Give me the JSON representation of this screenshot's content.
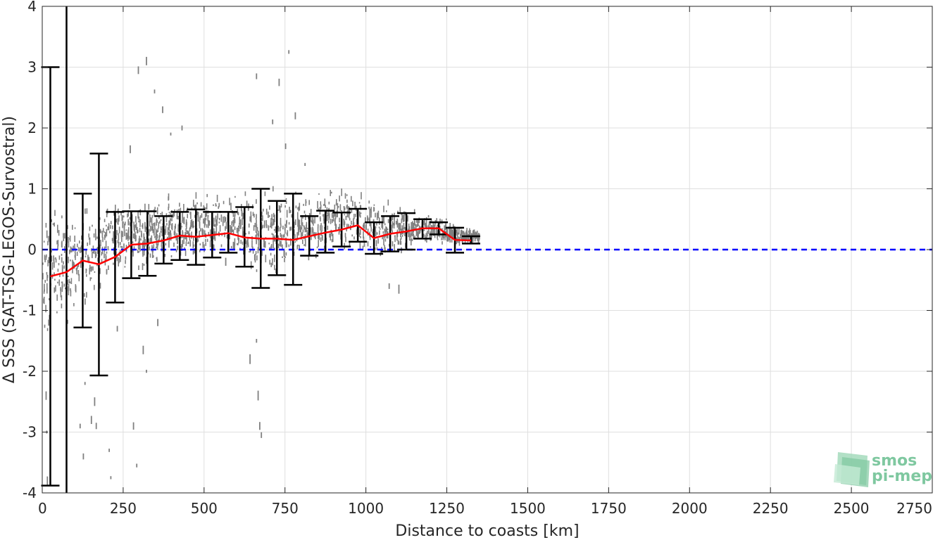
{
  "chart_data": {
    "type": "scatter",
    "xlabel": "Distance to coasts [km]",
    "ylabel": "Δ SSS (SAT-TSG-LEGOS-Survostral)",
    "xlim": [
      0,
      2750
    ],
    "ylim": [
      -4,
      4
    ],
    "x_ticks": [
      0,
      250,
      500,
      750,
      1000,
      1250,
      1500,
      1750,
      2000,
      2250,
      2500,
      2750
    ],
    "y_ticks": [
      -4,
      -3,
      -2,
      -1,
      0,
      1,
      2,
      3,
      4
    ],
    "grid": true,
    "zero_line": {
      "y": 0,
      "style": "dashed",
      "color": "#0000ff"
    },
    "colors": {
      "scatter": "#808080",
      "mean": "#ff0000",
      "errorbar": "#000000",
      "zero": "#0000ff"
    },
    "mean_curve": {
      "x": [
        25,
        75,
        125,
        175,
        225,
        275,
        325,
        375,
        425,
        475,
        525,
        575,
        625,
        675,
        725,
        775,
        825,
        875,
        925,
        975,
        1025,
        1075,
        1125,
        1175,
        1225,
        1275,
        1325
      ],
      "y": [
        -0.44,
        -0.37,
        -0.18,
        -0.24,
        -0.12,
        0.08,
        0.1,
        0.15,
        0.23,
        0.21,
        0.24,
        0.27,
        0.2,
        0.18,
        0.18,
        0.16,
        0.22,
        0.28,
        0.33,
        0.4,
        0.19,
        0.26,
        0.3,
        0.35,
        0.35,
        0.16,
        0.15
      ]
    },
    "error_bars": {
      "x": [
        25,
        75,
        125,
        175,
        225,
        275,
        325,
        375,
        425,
        475,
        525,
        575,
        625,
        675,
        725,
        775,
        825,
        875,
        925,
        975,
        1025,
        1075,
        1125,
        1175,
        1225,
        1275,
        1325
      ],
      "lower": [
        -3.88,
        -4.3,
        -1.28,
        -2.07,
        -0.87,
        -0.47,
        -0.43,
        -0.23,
        -0.17,
        -0.25,
        -0.13,
        -0.05,
        -0.28,
        -0.63,
        -0.42,
        -0.58,
        -0.1,
        -0.05,
        0.05,
        0.13,
        -0.07,
        -0.03,
        0.0,
        0.18,
        0.25,
        -0.05,
        0.1
      ],
      "upper": [
        3.0,
        4.3,
        0.92,
        1.58,
        0.62,
        0.63,
        0.63,
        0.55,
        0.62,
        0.66,
        0.62,
        0.62,
        0.7,
        1.0,
        0.8,
        0.92,
        0.55,
        0.64,
        0.61,
        0.67,
        0.45,
        0.55,
        0.6,
        0.5,
        0.45,
        0.36,
        0.22
      ]
    },
    "scatter_envelope": {
      "x": [
        0,
        50,
        100,
        150,
        200,
        250,
        300,
        350,
        400,
        450,
        500,
        550,
        600,
        650,
        700,
        750,
        800,
        850,
        900,
        950,
        1000,
        1050,
        1100,
        1150,
        1200,
        1250,
        1300,
        1350
      ],
      "lower": [
        -1.5,
        -1.4,
        -1.1,
        -0.9,
        -0.6,
        -0.4,
        -0.35,
        -0.25,
        -0.2,
        -0.2,
        -0.15,
        -0.1,
        -0.2,
        -0.5,
        -0.4,
        -0.45,
        -0.15,
        -0.15,
        -0.05,
        0.0,
        -0.05,
        -0.1,
        -0.05,
        0.1,
        0.15,
        0.05,
        0.08,
        0.1
      ],
      "upper": [
        0.6,
        0.7,
        0.75,
        0.8,
        0.75,
        0.8,
        0.8,
        0.8,
        0.85,
        0.9,
        0.95,
        0.95,
        0.9,
        0.95,
        1.0,
        1.0,
        0.95,
        1.0,
        1.0,
        1.0,
        0.9,
        0.85,
        0.8,
        0.6,
        0.55,
        0.5,
        0.35,
        0.3
      ]
    },
    "scatter_outliers": [
      [
        10,
        -2.4
      ],
      [
        12,
        -3.0
      ],
      [
        14,
        -3.8
      ],
      [
        18,
        -1.2
      ],
      [
        115,
        -2.9
      ],
      [
        125,
        -3.4
      ],
      [
        130,
        -2.2
      ],
      [
        150,
        -2.8
      ],
      [
        160,
        -2.5
      ],
      [
        165,
        -2.9
      ],
      [
        205,
        -3.3
      ],
      [
        210,
        -3.75
      ],
      [
        230,
        -1.3
      ],
      [
        280,
        -2.9
      ],
      [
        290,
        -3.55
      ],
      [
        310,
        -1.65
      ],
      [
        320,
        -2.0
      ],
      [
        355,
        -1.2
      ],
      [
        640,
        -1.8
      ],
      [
        660,
        -1.5
      ],
      [
        665,
        -2.4
      ],
      [
        670,
        -2.9
      ],
      [
        675,
        -3.05
      ],
      [
        565,
        -0.2
      ],
      [
        1070,
        -0.6
      ],
      [
        1100,
        -0.65
      ],
      [
        295,
        2.95
      ],
      [
        320,
        3.1
      ],
      [
        345,
        2.6
      ],
      [
        370,
        2.3
      ],
      [
        395,
        1.9
      ],
      [
        430,
        2.0
      ],
      [
        660,
        2.85
      ],
      [
        710,
        2.1
      ],
      [
        760,
        3.25
      ],
      [
        780,
        2.2
      ],
      [
        810,
        1.4
      ],
      [
        270,
        1.65
      ],
      [
        750,
        1.7
      ],
      [
        730,
        2.75
      ]
    ],
    "logo": {
      "line1": "smos",
      "line2": "pi-mep"
    }
  }
}
